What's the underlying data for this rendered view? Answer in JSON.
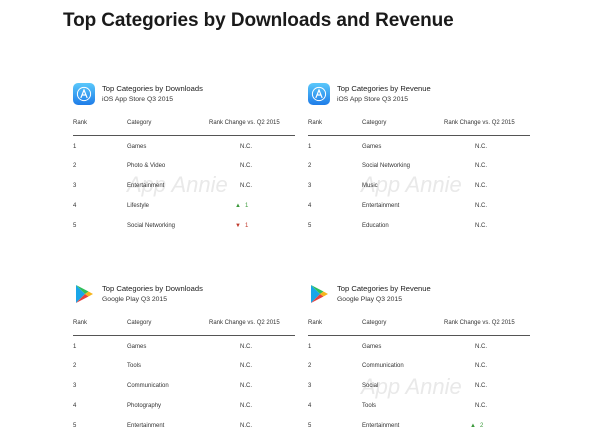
{
  "page_title": "Top Categories by Downloads and Revenue",
  "watermark": "App Annie",
  "headers": {
    "rank": "Rank",
    "category": "Category",
    "change": "Rank Change vs. Q2 2015"
  },
  "panels": [
    {
      "icon": "app-store-icon",
      "title": "Top Categories by Downloads",
      "subtitle": "iOS App Store Q3 2015",
      "rows": [
        {
          "rank": "1",
          "category": "Games",
          "change": "N.C.",
          "arrow": ""
        },
        {
          "rank": "2",
          "category": "Photo & Video",
          "change": "N.C.",
          "arrow": ""
        },
        {
          "rank": "3",
          "category": "Entertainment",
          "change": "N.C.",
          "arrow": ""
        },
        {
          "rank": "4",
          "category": "Lifestyle",
          "change": "1",
          "arrow": "up"
        },
        {
          "rank": "5",
          "category": "Social Networking",
          "change": "1",
          "arrow": "down"
        }
      ]
    },
    {
      "icon": "app-store-icon",
      "title": "Top Categories by Revenue",
      "subtitle": "iOS App Store Q3 2015",
      "rows": [
        {
          "rank": "1",
          "category": "Games",
          "change": "N.C.",
          "arrow": ""
        },
        {
          "rank": "2",
          "category": "Social Networking",
          "change": "N.C.",
          "arrow": ""
        },
        {
          "rank": "3",
          "category": "Music",
          "change": "N.C.",
          "arrow": ""
        },
        {
          "rank": "4",
          "category": "Entertainment",
          "change": "N.C.",
          "arrow": ""
        },
        {
          "rank": "5",
          "category": "Education",
          "change": "N.C.",
          "arrow": ""
        }
      ]
    },
    {
      "icon": "google-play-icon",
      "title": "Top Categories by Downloads",
      "subtitle": "Google Play Q3 2015",
      "rows": [
        {
          "rank": "1",
          "category": "Games",
          "change": "N.C.",
          "arrow": ""
        },
        {
          "rank": "2",
          "category": "Tools",
          "change": "N.C.",
          "arrow": ""
        },
        {
          "rank": "3",
          "category": "Communication",
          "change": "N.C.",
          "arrow": ""
        },
        {
          "rank": "4",
          "category": "Photography",
          "change": "N.C.",
          "arrow": ""
        },
        {
          "rank": "5",
          "category": "Entertainment",
          "change": "N.C.",
          "arrow": ""
        }
      ]
    },
    {
      "icon": "google-play-icon",
      "title": "Top Categories by Revenue",
      "subtitle": "Google Play Q3 2015",
      "rows": [
        {
          "rank": "1",
          "category": "Games",
          "change": "N.C.",
          "arrow": ""
        },
        {
          "rank": "2",
          "category": "Communication",
          "change": "N.C.",
          "arrow": ""
        },
        {
          "rank": "3",
          "category": "Social",
          "change": "N.C.",
          "arrow": ""
        },
        {
          "rank": "4",
          "category": "Tools",
          "change": "N.C.",
          "arrow": ""
        },
        {
          "rank": "5",
          "category": "Entertainment",
          "change": "2",
          "arrow": "up"
        }
      ]
    }
  ],
  "colors": {
    "up": "#3c9a3c",
    "down": "#c0392b",
    "app_store_blue": "#1e7ce8"
  }
}
